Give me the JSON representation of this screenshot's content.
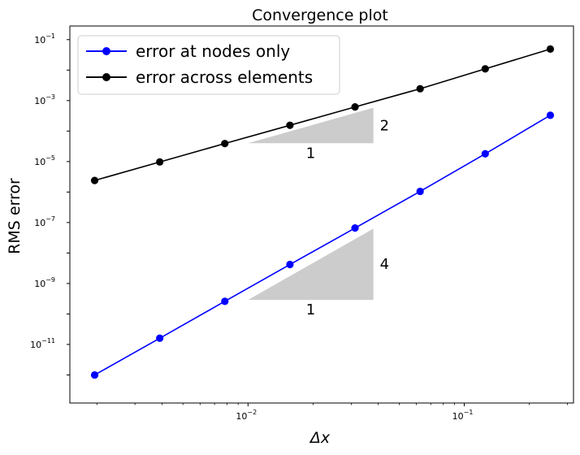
{
  "chart_data": {
    "type": "line",
    "title": "Convergence plot",
    "xlabel": "Δx",
    "ylabel": "RMS error",
    "xscale": "log",
    "yscale": "log",
    "xlim": [
      0.0015,
      0.32
    ],
    "ylim": [
      1.2e-13,
      0.28
    ],
    "x": [
      0.001953125,
      0.00390625,
      0.0078125,
      0.015625,
      0.03125,
      0.0625,
      0.125,
      0.25
    ],
    "series": [
      {
        "name": "error at nodes only",
        "color": "#0000ff",
        "marker": "circle",
        "values": [
          1e-12,
          1.6e-11,
          2.6e-10,
          4.2e-09,
          6.6e-08,
          1.05e-06,
          1.8e-05,
          0.00033
        ]
      },
      {
        "name": "error across elements",
        "color": "#000000",
        "marker": "circle",
        "values": [
          2.4e-06,
          9.7e-06,
          3.9e-05,
          0.000155,
          0.00062,
          0.00245,
          0.011,
          0.049
        ]
      }
    ],
    "x_ticks": [
      {
        "value": 0.01,
        "base": "10",
        "exp": "−2"
      },
      {
        "value": 0.1,
        "base": "10",
        "exp": "−1"
      }
    ],
    "y_ticks": [
      {
        "value": 1e-11,
        "base": "10",
        "exp": "−11"
      },
      {
        "value": 1e-09,
        "base": "10",
        "exp": "−9"
      },
      {
        "value": 1e-07,
        "base": "10",
        "exp": "−7"
      },
      {
        "value": 1e-05,
        "base": "10",
        "exp": "−5"
      },
      {
        "value": 0.001,
        "base": "10",
        "exp": "−3"
      },
      {
        "value": 0.1,
        "base": "10",
        "exp": "−1"
      }
    ],
    "slope_triangles": [
      {
        "x0": 0.01,
        "x1": 0.038,
        "y0": 4e-05,
        "y1": 0.00058,
        "run_label": "1",
        "rise_label": "2",
        "color": "#cccccc"
      },
      {
        "x0": 0.01,
        "x1": 0.038,
        "y0": 2.9e-10,
        "y1": 6.3e-08,
        "run_label": "1",
        "rise_label": "4",
        "color": "#cccccc"
      }
    ],
    "legend_position": "upper-left",
    "grid": false
  }
}
